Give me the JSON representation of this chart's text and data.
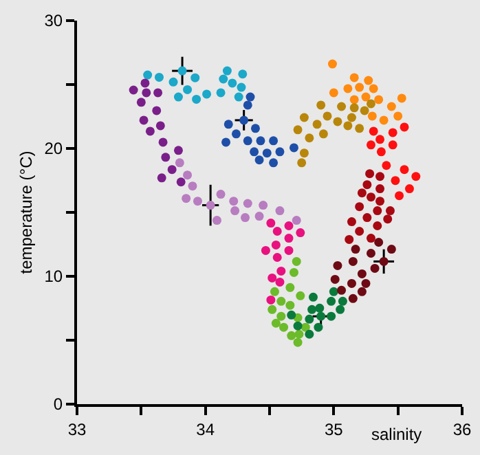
{
  "chart_data": {
    "type": "scatter",
    "xlabel": "salinity",
    "ylabel": "temperature (°C)",
    "xlim": [
      33,
      36
    ],
    "ylim": [
      0,
      30
    ],
    "xticks": [
      33,
      {
        "value": 33.5,
        "label": null
      },
      34,
      {
        "value": 34.5,
        "label": null
      },
      35,
      {
        "value": 35.5,
        "label": null
      },
      36
    ],
    "yticks": [
      0,
      {
        "value": 5,
        "label": null
      },
      10,
      {
        "value": 15,
        "label": null
      },
      20,
      {
        "value": 25,
        "label": null
      },
      30
    ],
    "grid": false,
    "marker": "circle",
    "series": [
      {
        "color": "#1ba8c9",
        "x": [
          33.55,
          33.64,
          33.75,
          33.79,
          33.86,
          33.92,
          33.93,
          34.01,
          34.12,
          34.14,
          34.17,
          34.21,
          34.26,
          34.28,
          34.29,
          33.82
        ],
        "values": [
          25.75,
          25.57,
          25.2,
          24.03,
          24.6,
          25.53,
          23.85,
          24.25,
          24.36,
          25.43,
          26.07,
          25.11,
          24.03,
          24.78,
          25.82,
          26.07
        ],
        "errors": [
          null,
          null,
          null,
          null,
          null,
          null,
          null,
          null,
          null,
          null,
          null,
          null,
          null,
          null,
          null,
          1.1
        ],
        "xerrors": [
          null,
          null,
          null,
          null,
          null,
          null,
          null,
          null,
          null,
          null,
          null,
          null,
          null,
          null,
          null,
          0.08
        ]
      },
      {
        "color": "#1e4fa8",
        "x": [
          34.35,
          34.33,
          34.3,
          34.18,
          34.24,
          34.39,
          34.16,
          34.33,
          34.43,
          34.53,
          34.38,
          34.48,
          34.58,
          34.42,
          34.53,
          34.69
        ],
        "values": [
          24.03,
          23.39,
          22.21,
          21.89,
          21.14,
          21.57,
          20.49,
          20.6,
          20.6,
          20.6,
          19.74,
          19.64,
          19.74,
          19.1,
          18.88,
          20.06
        ],
        "errors": [
          null,
          null,
          0.8,
          null,
          null,
          null,
          null,
          null,
          null,
          null,
          null,
          null,
          null,
          null,
          null,
          null
        ],
        "xerrors": [
          null,
          null,
          0.07,
          null,
          null,
          null,
          null,
          null,
          null,
          null,
          null,
          null,
          null,
          null,
          null,
          null
        ]
      },
      {
        "color": "#7a1f8a",
        "x": [
          33.44,
          33.53,
          33.5,
          33.54,
          33.63,
          33.52,
          33.62,
          33.57,
          33.65,
          33.67,
          33.79,
          33.69,
          33.74,
          33.81,
          33.66
        ],
        "values": [
          24.57,
          25.11,
          23.61,
          24.36,
          24.36,
          22.21,
          22.96,
          21.35,
          21.78,
          20.49,
          19.85,
          19.31,
          18.35,
          17.38,
          17.7
        ]
      },
      {
        "color": "#b87cc0",
        "x": [
          33.8,
          33.86,
          33.9,
          33.85,
          33.94,
          34.04,
          34.12,
          34.09,
          34.22,
          34.23,
          34.33,
          34.31,
          34.45,
          34.42,
          34.58,
          34.71
        ],
        "values": [
          18.88,
          17.92,
          17.06,
          16.09,
          15.88,
          15.56,
          16.42,
          14.38,
          15.88,
          15.13,
          15.7,
          14.59,
          15.56,
          14.7,
          15.13,
          14.38
        ],
        "errors": [
          null,
          null,
          null,
          null,
          null,
          1.6,
          null,
          null,
          null,
          null,
          null,
          null,
          null,
          null,
          null,
          null
        ],
        "xerrors": [
          null,
          null,
          null,
          null,
          null,
          0.065,
          null,
          null,
          null,
          null,
          null,
          null,
          null,
          null,
          null,
          null
        ]
      },
      {
        "color": "#e8117f",
        "x": [
          34.51,
          34.56,
          34.65,
          34.74,
          34.47,
          34.55,
          34.65,
          34.56,
          34.65,
          34.52,
          34.59,
          34.58,
          34.51
        ],
        "values": [
          14.16,
          13.52,
          13.95,
          13.41,
          12.02,
          12.45,
          12.98,
          11.48,
          12.02,
          9.87,
          10.41,
          9.55,
          8.15
        ]
      },
      {
        "color": "#6cbb2a",
        "x": [
          34.71,
          34.69,
          34.54,
          34.66,
          34.74,
          34.52,
          34.59,
          34.66,
          34.55,
          34.59,
          34.61,
          34.72,
          34.78,
          34.67,
          34.73,
          34.72
        ],
        "values": [
          11.16,
          10.3,
          8.8,
          9.12,
          8.48,
          7.4,
          8.05,
          7.73,
          6.33,
          6.87,
          6.01,
          6.76,
          6.01,
          5.36,
          5.47,
          4.83
        ]
      },
      {
        "color": "#0a7a3c",
        "x": [
          34.84,
          34.83,
          34.81,
          34.89,
          34.9,
          34.98,
          34.88,
          34.81,
          35.0,
          34.98,
          35.07,
          35.05,
          34.67,
          34.72
        ],
        "values": [
          8.37,
          7.4,
          6.65,
          7.51,
          6.87,
          6.87,
          6.01,
          5.47,
          8.8,
          8.05,
          8.05,
          7.4,
          6.97,
          6.12
        ],
        "errors": [
          null,
          null,
          null,
          null,
          0.7,
          null,
          null,
          null,
          null,
          null,
          null,
          null,
          null,
          null
        ],
        "xerrors": [
          null,
          null,
          null,
          null,
          0.065,
          null,
          null,
          null,
          null,
          null,
          null,
          null,
          null,
          null
        ]
      },
      {
        "color": "#6e0a14",
        "x": [
          35.03,
          35.01,
          35.06,
          35.15,
          35.14,
          35.22,
          35.25,
          35.15,
          35.17,
          35.22,
          35.29,
          35.32,
          35.35,
          35.45,
          35.39
        ],
        "values": [
          10.84,
          9.76,
          8.91,
          8.26,
          9.44,
          8.8,
          9.44,
          11.16,
          12.12,
          10.19,
          11.8,
          10.62,
          12.66,
          12.12,
          11.16
        ],
        "errors": [
          null,
          null,
          null,
          null,
          null,
          null,
          null,
          null,
          null,
          null,
          null,
          null,
          null,
          null,
          0.95
        ],
        "xerrors": [
          null,
          null,
          null,
          null,
          null,
          null,
          null,
          null,
          null,
          null,
          null,
          null,
          null,
          null,
          0.08
        ]
      },
      {
        "color": "#a80812",
        "x": [
          35.28,
          35.26,
          35.36,
          35.36,
          35.29,
          35.22,
          35.2,
          35.36,
          35.26,
          35.34,
          35.44,
          35.42,
          35.34,
          35.29,
          35.2,
          35.14,
          35.12
        ],
        "values": [
          18.03,
          17.17,
          17.81,
          16.85,
          16.2,
          16.52,
          15.45,
          15.88,
          14.59,
          15.13,
          15.13,
          14.48,
          13.95,
          12.98,
          13.52,
          14.27,
          12.88
        ]
      },
      {
        "color": "#ff1010",
        "x": [
          35.29,
          35.31,
          35.36,
          35.46,
          35.55,
          35.37,
          35.46,
          35.41,
          35.48,
          35.55,
          35.64,
          35.59,
          35.51
        ],
        "values": [
          20.28,
          21.35,
          20.71,
          21.24,
          21.67,
          19.74,
          20.28,
          18.67,
          17.49,
          18.35,
          17.81,
          16.85,
          16.31
        ]
      },
      {
        "color": "#ff8a10",
        "x": [
          34.99,
          35.0,
          35.11,
          35.16,
          35.27,
          35.2,
          35.31,
          35.16,
          35.25,
          35.35,
          35.45,
          35.53,
          35.5,
          35.39,
          35.3
        ],
        "values": [
          26.61,
          24.36,
          24.68,
          25.54,
          25.32,
          24.78,
          24.68,
          23.82,
          24.03,
          23.82,
          23.28,
          23.93,
          22.53,
          22.21,
          22.53
        ]
      },
      {
        "color": "#b8860b",
        "x": [
          34.9,
          34.77,
          34.72,
          34.81,
          34.87,
          34.95,
          34.92,
          35.03,
          35.06,
          35.11,
          35.16,
          35.14,
          35.2,
          35.29,
          35.24,
          34.77,
          34.75
        ],
        "values": [
          23.39,
          22.42,
          21.46,
          20.82,
          21.89,
          22.53,
          21.14,
          22.1,
          23.28,
          21.78,
          23.18,
          22.42,
          21.57,
          23.5,
          22.96,
          19.64,
          18.88
        ]
      }
    ]
  }
}
